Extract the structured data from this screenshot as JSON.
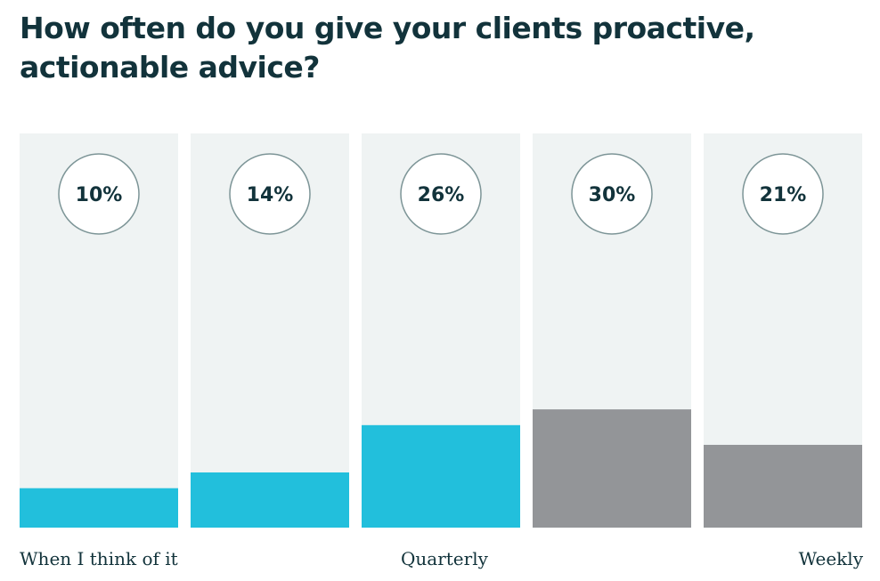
{
  "chart_data": {
    "type": "bar",
    "title": "How often do you give your clients proactive, actionable advice?",
    "categories": [
      "",
      "",
      "",
      "",
      ""
    ],
    "values": [
      10,
      14,
      26,
      30,
      21
    ],
    "value_labels": [
      "10%",
      "14%",
      "26%",
      "30%",
      "21%"
    ],
    "ylim": [
      0,
      100
    ],
    "grid": false,
    "colors": [
      "#22bfdc",
      "#22bfdc",
      "#22bfdc",
      "#939598",
      "#939598"
    ],
    "track_color": "#eff3f3",
    "axis_labels": {
      "left": "When I think of it",
      "middle": "Quarterly",
      "right": "Weekly"
    }
  }
}
